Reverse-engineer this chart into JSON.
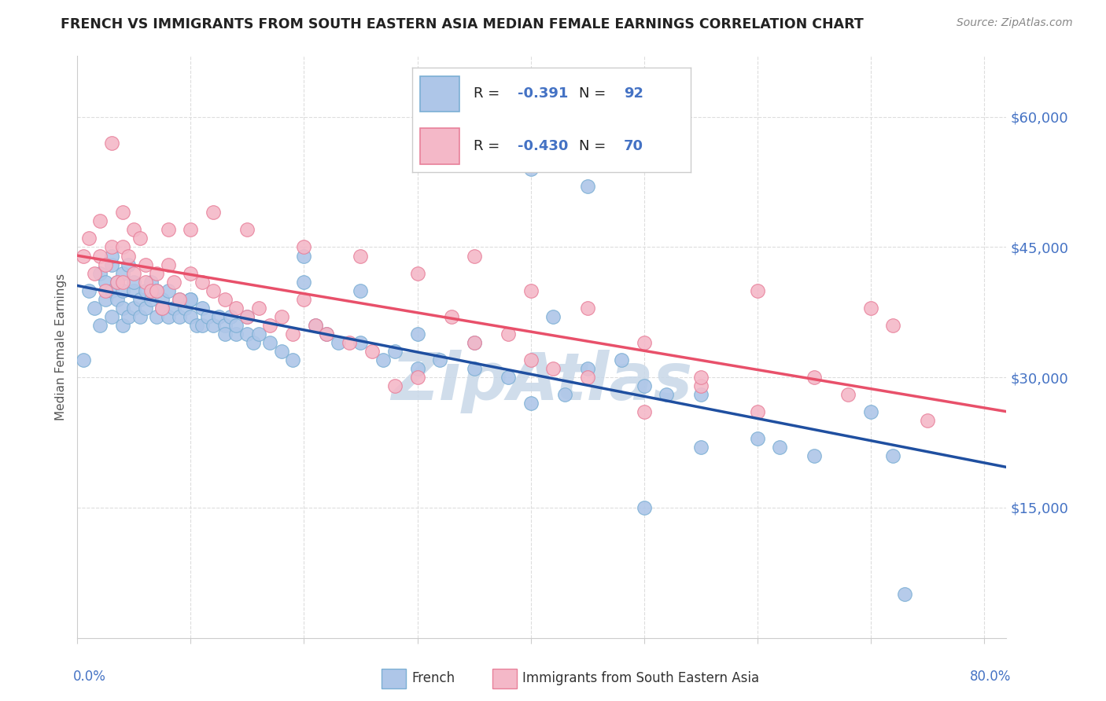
{
  "title": "FRENCH VS IMMIGRANTS FROM SOUTH EASTERN ASIA MEDIAN FEMALE EARNINGS CORRELATION CHART",
  "source": "Source: ZipAtlas.com",
  "ylabel": "Median Female Earnings",
  "yticks": [
    15000,
    30000,
    45000,
    60000
  ],
  "ytick_labels": [
    "$15,000",
    "$30,000",
    "$45,000",
    "$60,000"
  ],
  "legend_french": "French",
  "legend_sea": "Immigrants from South Eastern Asia",
  "r_french": "-0.391",
  "n_french": "92",
  "r_sea": "-0.430",
  "n_sea": "70",
  "french_color": "#aec6e8",
  "french_edge": "#7bafd4",
  "sea_color": "#f4b8c8",
  "sea_edge": "#e8809a",
  "french_line_color": "#1f4fa0",
  "sea_line_color": "#e8506a",
  "watermark_color": "#c8d8e8",
  "bg_color": "#ffffff",
  "title_color": "#222222",
  "right_tick_color": "#4472c4",
  "legend_value_color": "#4472c4",
  "grid_color": "#dddddd",
  "xlim": [
    0.0,
    0.82
  ],
  "ylim": [
    0,
    67000
  ],
  "french_scatter_x": [
    0.005,
    0.01,
    0.015,
    0.02,
    0.02,
    0.025,
    0.025,
    0.03,
    0.03,
    0.03,
    0.03,
    0.035,
    0.035,
    0.04,
    0.04,
    0.04,
    0.04,
    0.045,
    0.045,
    0.05,
    0.05,
    0.05,
    0.055,
    0.055,
    0.06,
    0.06,
    0.065,
    0.065,
    0.07,
    0.07,
    0.075,
    0.075,
    0.08,
    0.08,
    0.085,
    0.09,
    0.09,
    0.095,
    0.1,
    0.1,
    0.105,
    0.11,
    0.11,
    0.115,
    0.12,
    0.125,
    0.13,
    0.13,
    0.135,
    0.14,
    0.14,
    0.15,
    0.155,
    0.16,
    0.17,
    0.18,
    0.19,
    0.2,
    0.21,
    0.22,
    0.23,
    0.25,
    0.27,
    0.28,
    0.3,
    0.32,
    0.35,
    0.38,
    0.4,
    0.42,
    0.43,
    0.45,
    0.48,
    0.5,
    0.52,
    0.55,
    0.6,
    0.62,
    0.65,
    0.7,
    0.72,
    0.73,
    0.3,
    0.35,
    0.4,
    0.45,
    0.5,
    0.55,
    0.2,
    0.25,
    0.15,
    0.1
  ],
  "french_scatter_y": [
    32000,
    40000,
    38000,
    42000,
    36000,
    41000,
    39000,
    43000,
    40000,
    37000,
    44000,
    41000,
    39000,
    40000,
    38000,
    42000,
    36000,
    43000,
    37000,
    40000,
    38000,
    41000,
    39000,
    37000,
    40000,
    38000,
    41000,
    39000,
    40000,
    37000,
    39000,
    38000,
    40000,
    37000,
    38000,
    39000,
    37000,
    38000,
    39000,
    37000,
    36000,
    38000,
    36000,
    37000,
    36000,
    37000,
    36000,
    35000,
    37000,
    35000,
    36000,
    35000,
    34000,
    35000,
    34000,
    33000,
    32000,
    41000,
    36000,
    35000,
    34000,
    34000,
    32000,
    33000,
    31000,
    32000,
    34000,
    30000,
    27000,
    37000,
    28000,
    31000,
    32000,
    29000,
    28000,
    22000,
    23000,
    22000,
    21000,
    26000,
    21000,
    5000,
    35000,
    31000,
    54000,
    52000,
    15000,
    28000,
    44000,
    40000,
    37000,
    39000
  ],
  "sea_scatter_x": [
    0.005,
    0.01,
    0.015,
    0.02,
    0.02,
    0.025,
    0.025,
    0.03,
    0.03,
    0.035,
    0.04,
    0.04,
    0.04,
    0.045,
    0.05,
    0.05,
    0.055,
    0.06,
    0.06,
    0.065,
    0.07,
    0.07,
    0.075,
    0.08,
    0.085,
    0.09,
    0.1,
    0.11,
    0.12,
    0.13,
    0.14,
    0.15,
    0.16,
    0.17,
    0.18,
    0.19,
    0.2,
    0.21,
    0.22,
    0.24,
    0.26,
    0.28,
    0.3,
    0.33,
    0.35,
    0.38,
    0.4,
    0.42,
    0.45,
    0.5,
    0.55,
    0.6,
    0.08,
    0.1,
    0.12,
    0.15,
    0.2,
    0.25,
    0.3,
    0.35,
    0.4,
    0.45,
    0.5,
    0.55,
    0.6,
    0.65,
    0.68,
    0.7,
    0.72,
    0.75
  ],
  "sea_scatter_y": [
    44000,
    46000,
    42000,
    48000,
    44000,
    40000,
    43000,
    57000,
    45000,
    41000,
    49000,
    45000,
    41000,
    44000,
    47000,
    42000,
    46000,
    43000,
    41000,
    40000,
    42000,
    40000,
    38000,
    43000,
    41000,
    39000,
    42000,
    41000,
    40000,
    39000,
    38000,
    37000,
    38000,
    36000,
    37000,
    35000,
    39000,
    36000,
    35000,
    34000,
    33000,
    29000,
    30000,
    37000,
    34000,
    35000,
    32000,
    31000,
    30000,
    26000,
    29000,
    26000,
    47000,
    47000,
    49000,
    47000,
    45000,
    44000,
    42000,
    44000,
    40000,
    38000,
    34000,
    30000,
    40000,
    30000,
    28000,
    38000,
    36000,
    25000
  ]
}
